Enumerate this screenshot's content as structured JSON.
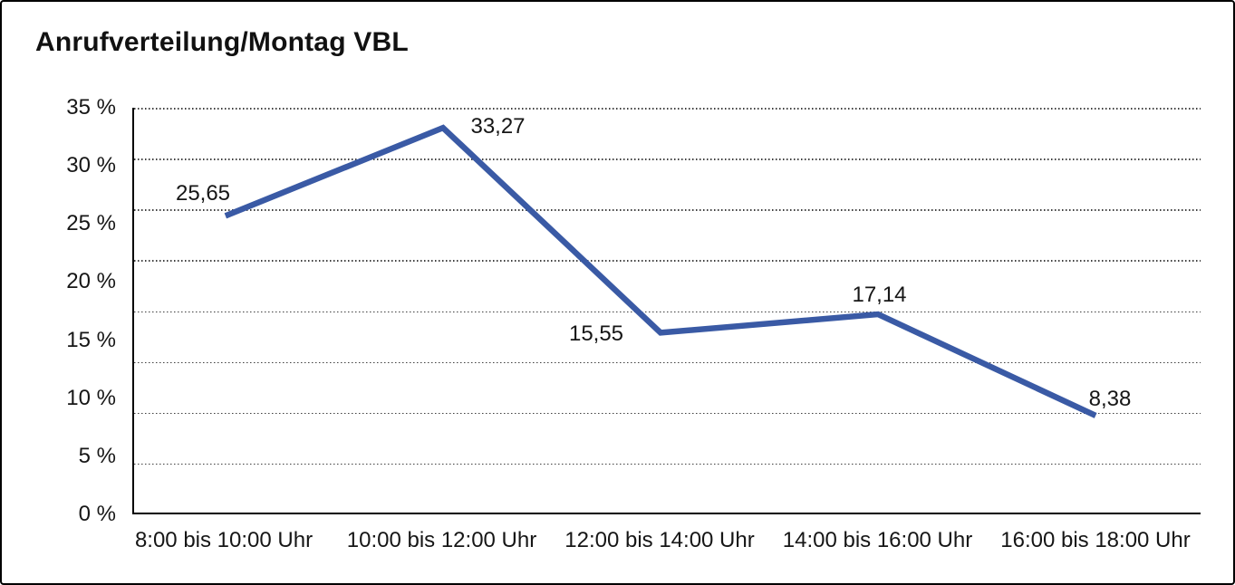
{
  "chart_data": {
    "type": "line",
    "title": "Anrufverteilung/Montag VBL",
    "categories": [
      "8:00 bis 10:00 Uhr",
      "10:00 bis 12:00 Uhr",
      "12:00 bis 14:00 Uhr",
      "14:00 bis 16:00 Uhr",
      "16:00 bis 18:00 Uhr"
    ],
    "values": [
      25.65,
      33.27,
      15.55,
      17.14,
      8.38
    ],
    "value_labels": [
      "25,65",
      "33,27",
      "15,55",
      "17,14",
      "8,38"
    ],
    "xlabel": "",
    "ylabel": "",
    "ylim": [
      0,
      35
    ],
    "ytick_labels": [
      "35 %",
      "30 %",
      "25 %",
      "20 %",
      "15 %",
      "10 %",
      "5 %",
      "0 %"
    ],
    "grid": "horizontal-dotted",
    "gridline_count": 8,
    "legend": "none",
    "line_color": "#3A5AA5",
    "axis_color": "#000000",
    "background_color": "#FFFFFF"
  }
}
